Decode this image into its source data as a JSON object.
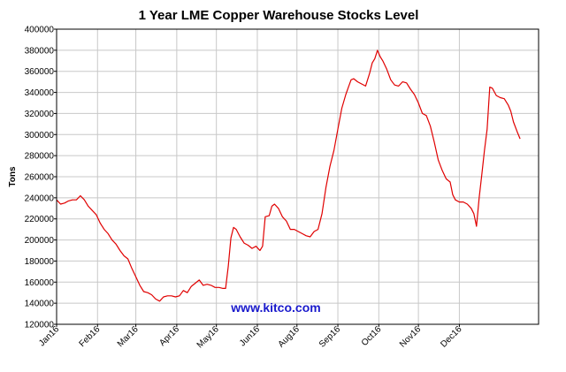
{
  "chart_data": {
    "type": "line",
    "title": "1 Year LME Copper Warehouse Stocks Level",
    "xlabel": "",
    "ylabel": "Tons",
    "ylim": [
      120000,
      400000
    ],
    "yticks": [
      120000,
      140000,
      160000,
      180000,
      200000,
      220000,
      240000,
      260000,
      280000,
      300000,
      320000,
      340000,
      360000,
      380000,
      400000
    ],
    "xlim": [
      0,
      365
    ],
    "xticks": [
      {
        "label": "Jan16",
        "x": 0
      },
      {
        "label": "Feb16",
        "x": 31
      },
      {
        "label": "Mar16",
        "x": 60
      },
      {
        "label": "Apr16",
        "x": 91
      },
      {
        "label": "May16",
        "x": 121
      },
      {
        "label": "Jun16",
        "x": 152
      },
      {
        "label": "Aug16",
        "x": 182
      },
      {
        "label": "Sep16",
        "x": 213
      },
      {
        "label": "Oct16",
        "x": 244
      },
      {
        "label": "Nov16",
        "x": 274
      },
      {
        "label": "Dec16",
        "x": 305
      }
    ],
    "grid": true,
    "line_color": "#e00000",
    "watermark": "www.kitco.com",
    "series": [
      {
        "name": "",
        "points": [
          [
            0,
            238000
          ],
          [
            3,
            234000
          ],
          [
            6,
            235000
          ],
          [
            9,
            237000
          ],
          [
            12,
            238000
          ],
          [
            15,
            238000
          ],
          [
            18,
            242000
          ],
          [
            21,
            238000
          ],
          [
            24,
            232000
          ],
          [
            27,
            228000
          ],
          [
            30,
            224000
          ],
          [
            33,
            216000
          ],
          [
            36,
            210000
          ],
          [
            39,
            206000
          ],
          [
            42,
            200000
          ],
          [
            45,
            196000
          ],
          [
            48,
            190000
          ],
          [
            51,
            185000
          ],
          [
            54,
            182000
          ],
          [
            57,
            173000
          ],
          [
            60,
            165000
          ],
          [
            63,
            157000
          ],
          [
            66,
            151000
          ],
          [
            69,
            150000
          ],
          [
            72,
            148000
          ],
          [
            75,
            144000
          ],
          [
            78,
            142000
          ],
          [
            81,
            146000
          ],
          [
            84,
            147000
          ],
          [
            87,
            147000
          ],
          [
            90,
            146000
          ],
          [
            93,
            147000
          ],
          [
            96,
            152000
          ],
          [
            99,
            150000
          ],
          [
            102,
            156000
          ],
          [
            105,
            159000
          ],
          [
            108,
            162000
          ],
          [
            111,
            157000
          ],
          [
            114,
            158000
          ],
          [
            117,
            157000
          ],
          [
            120,
            155000
          ],
          [
            123,
            155000
          ],
          [
            126,
            154000
          ],
          [
            128,
            154000
          ],
          [
            130,
            175000
          ],
          [
            132,
            202000
          ],
          [
            134,
            212000
          ],
          [
            136,
            210000
          ],
          [
            139,
            203000
          ],
          [
            142,
            197000
          ],
          [
            145,
            195000
          ],
          [
            148,
            192000
          ],
          [
            151,
            194000
          ],
          [
            154,
            190000
          ],
          [
            156,
            194000
          ],
          [
            157,
            208000
          ],
          [
            158,
            222000
          ],
          [
            161,
            223000
          ],
          [
            163,
            232000
          ],
          [
            165,
            234000
          ],
          [
            168,
            230000
          ],
          [
            171,
            222000
          ],
          [
            174,
            218000
          ],
          [
            177,
            210000
          ],
          [
            180,
            210000
          ],
          [
            183,
            208000
          ],
          [
            186,
            206000
          ],
          [
            189,
            204000
          ],
          [
            192,
            203000
          ],
          [
            195,
            208000
          ],
          [
            198,
            210000
          ],
          [
            201,
            225000
          ],
          [
            204,
            250000
          ],
          [
            207,
            270000
          ],
          [
            210,
            285000
          ],
          [
            213,
            305000
          ],
          [
            216,
            325000
          ],
          [
            219,
            338000
          ],
          [
            221,
            345000
          ],
          [
            223,
            352000
          ],
          [
            225,
            353000
          ],
          [
            228,
            350000
          ],
          [
            231,
            348000
          ],
          [
            234,
            346000
          ],
          [
            237,
            358000
          ],
          [
            239,
            368000
          ],
          [
            241,
            372000
          ],
          [
            243,
            380000
          ],
          [
            245,
            374000
          ],
          [
            247,
            370000
          ],
          [
            250,
            362000
          ],
          [
            253,
            352000
          ],
          [
            256,
            347000
          ],
          [
            259,
            346000
          ],
          [
            262,
            350000
          ],
          [
            265,
            349000
          ],
          [
            268,
            343000
          ],
          [
            271,
            338000
          ],
          [
            274,
            330000
          ],
          [
            277,
            320000
          ],
          [
            280,
            318000
          ],
          [
            283,
            308000
          ],
          [
            286,
            293000
          ],
          [
            289,
            276000
          ],
          [
            292,
            266000
          ],
          [
            295,
            258000
          ],
          [
            298,
            255000
          ],
          [
            300,
            243000
          ],
          [
            302,
            238000
          ],
          [
            305,
            236000
          ],
          [
            308,
            236000
          ],
          [
            311,
            234000
          ],
          [
            314,
            230000
          ],
          [
            316,
            225000
          ],
          [
            318,
            213000
          ],
          [
            320,
            240000
          ],
          [
            322,
            262000
          ],
          [
            324,
            285000
          ],
          [
            326,
            305000
          ],
          [
            328,
            345000
          ],
          [
            330,
            344000
          ],
          [
            333,
            337000
          ],
          [
            336,
            335000
          ],
          [
            339,
            334000
          ],
          [
            342,
            328000
          ],
          [
            344,
            322000
          ],
          [
            346,
            312000
          ],
          [
            349,
            302000
          ],
          [
            351,
            296000
          ]
        ]
      }
    ]
  }
}
